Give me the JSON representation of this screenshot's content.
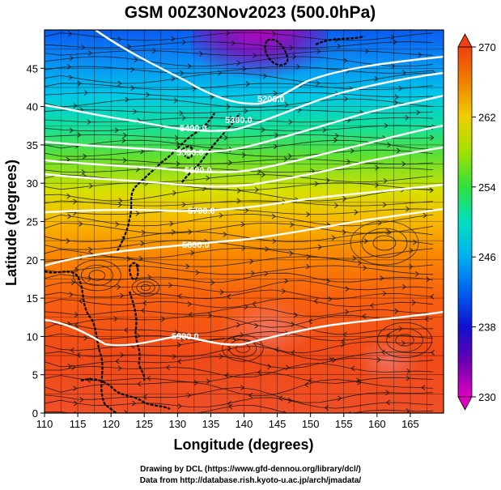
{
  "title": "GSM 00Z30Nov2023 (500.0hPa)",
  "x_axis": {
    "label": "Longitude (degrees)",
    "ticks": [
      "110",
      "115",
      "120",
      "125",
      "130",
      "135",
      "140",
      "145",
      "150",
      "155",
      "160",
      "165"
    ],
    "range": [
      110,
      170
    ]
  },
  "y_axis": {
    "label": "Latitude  (degrees)",
    "ticks": [
      "0",
      "5",
      "10",
      "15",
      "20",
      "25",
      "30",
      "35",
      "40",
      "45"
    ],
    "range": [
      0,
      50
    ]
  },
  "colorbar": {
    "ticks": [
      "270",
      "262",
      "254",
      "246",
      "238",
      "230"
    ],
    "range": [
      230,
      270
    ],
    "colors": [
      "#e000c0",
      "#6a00b0",
      "#1010d0",
      "#0060f0",
      "#00b0f0",
      "#00e0c0",
      "#30e040",
      "#a0e000",
      "#f0d000",
      "#f08000",
      "#f04010",
      "#f05030"
    ]
  },
  "contours": [
    {
      "label": "5200.0"
    },
    {
      "label": "5300.0"
    },
    {
      "label": "5400.0"
    },
    {
      "label": "5500.0"
    },
    {
      "label": "5600.0"
    },
    {
      "label": "5700.0"
    },
    {
      "label": "5800.0"
    },
    {
      "label": "5900.0"
    }
  ],
  "credits": {
    "line1": "Drawing by DCL (https://www.gfd-dennou.org/library/dcl/)",
    "line2": "Data from http://database.rish.kyoto-u.ac.jp/arch/jmadata/"
  }
}
